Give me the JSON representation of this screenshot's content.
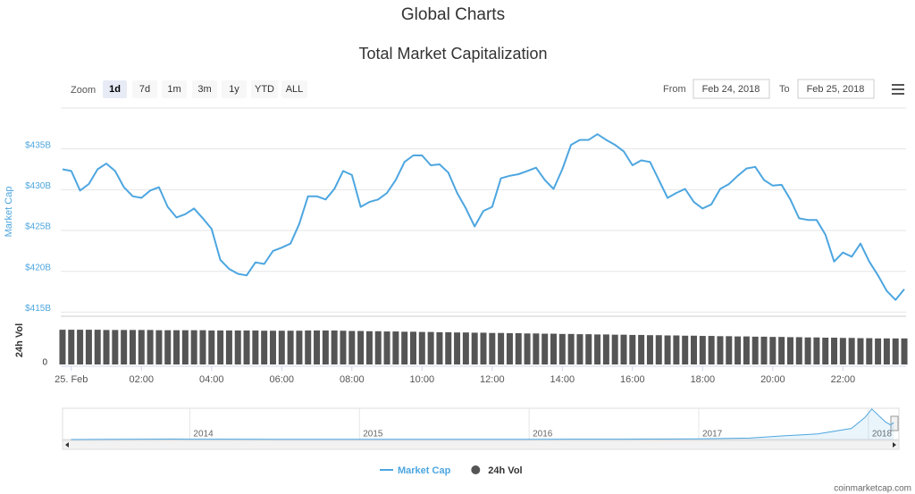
{
  "header": {
    "title": "Global Charts"
  },
  "controls": {
    "zoom_label": "Zoom",
    "zoom_buttons": [
      "1d",
      "7d",
      "1m",
      "3m",
      "1y",
      "YTD",
      "ALL"
    ],
    "selected": "1d",
    "from_label": "From",
    "from": "Feb 24, 2018",
    "to_label": "To",
    "to": "Feb 25, 2018"
  },
  "chart_data": [
    {
      "type": "line",
      "title": "Total Market Capitalization",
      "x": [
        -0.25,
        0,
        0.25,
        0.5,
        0.75,
        1,
        1.25,
        1.5,
        1.75,
        2,
        2.25,
        2.5,
        2.75,
        3,
        3.25,
        3.5,
        3.75,
        4,
        4.25,
        4.5,
        4.75,
        5,
        5.25,
        5.5,
        5.75,
        6,
        6.25,
        6.5,
        6.75,
        7,
        7.25,
        7.5,
        7.75,
        8,
        8.25,
        8.5,
        8.75,
        9,
        9.25,
        9.5,
        9.75,
        10,
        10.25,
        10.5,
        10.75,
        11,
        11.25,
        11.5,
        11.75,
        12,
        12.25,
        12.5,
        12.75,
        13,
        13.25,
        13.5,
        13.75,
        14,
        14.25,
        14.5,
        14.75,
        15,
        15.25,
        15.5,
        15.75,
        16,
        16.25,
        16.5,
        16.75,
        17,
        17.25,
        17.5,
        17.75,
        18,
        18.25,
        18.5,
        18.75,
        19,
        19.25,
        19.5,
        19.75,
        20,
        20.25,
        20.5,
        20.75,
        21,
        21.25,
        21.5,
        21.75,
        22,
        22.25,
        22.5,
        22.75,
        23,
        23.25,
        23.5,
        23.75
      ],
      "xlim": [
        -0.3,
        23.8
      ],
      "xticks": [
        {
          "value": 0,
          "label": "25. Feb"
        },
        {
          "value": 2,
          "label": "02:00"
        },
        {
          "value": 4,
          "label": "04:00"
        },
        {
          "value": 6,
          "label": "06:00"
        },
        {
          "value": 8,
          "label": "08:00"
        },
        {
          "value": 10,
          "label": "10:00"
        },
        {
          "value": 12,
          "label": "12:00"
        },
        {
          "value": 14,
          "label": "14:00"
        },
        {
          "value": 16,
          "label": "16:00"
        },
        {
          "value": 18,
          "label": "18:00"
        },
        {
          "value": 20,
          "label": "20:00"
        },
        {
          "value": 22,
          "label": "22:00"
        }
      ],
      "ylabel": "Market Cap",
      "ylim": [
        414.5,
        440
      ],
      "yticks": [
        {
          "value": 415,
          "label": "$415B"
        },
        {
          "value": 420,
          "label": "$420B"
        },
        {
          "value": 425,
          "label": "$425B"
        },
        {
          "value": 430,
          "label": "$430B"
        },
        {
          "value": 435,
          "label": "$435B"
        }
      ],
      "y2label": "24h Vol",
      "y2lim": [
        0,
        18
      ],
      "y2ticks": [
        0
      ],
      "grid": true,
      "series": [
        {
          "name": "Market Cap",
          "color": "#4da6e0",
          "values": [
            432.5,
            432.3,
            429.9,
            430.7,
            432.5,
            433.2,
            432.3,
            430.3,
            429.2,
            429.0,
            429.9,
            430.3,
            427.9,
            426.6,
            427.0,
            427.7,
            426.5,
            425.2,
            421.4,
            420.3,
            419.7,
            419.5,
            421.1,
            420.9,
            422.5,
            422.9,
            423.4,
            425.8,
            429.2,
            429.2,
            428.8,
            430.1,
            432.3,
            431.8,
            427.9,
            428.5,
            428.8,
            429.6,
            431.2,
            433.4,
            434.2,
            434.2,
            433.0,
            433.1,
            432.1,
            429.6,
            427.7,
            425.5,
            427.4,
            427.9,
            431.4,
            431.7,
            431.9,
            432.3,
            432.7,
            431.2,
            430.1,
            432.5,
            435.5,
            436.1,
            436.1,
            436.8,
            436.1,
            435.5,
            434.7,
            433.0,
            433.6,
            433.4,
            431.2,
            429.0,
            429.6,
            430.1,
            428.5,
            427.7,
            428.2,
            430.1,
            430.7,
            431.7,
            432.6,
            432.8,
            431.2,
            430.5,
            430.6,
            428.8,
            426.5,
            426.3,
            426.3,
            424.5,
            421.2,
            422.3,
            421.8,
            423.4,
            421.2,
            419.5,
            417.6,
            416.5,
            417.8
          ]
        },
        {
          "name": "24h Vol",
          "type": "bar",
          "axis": "y2",
          "color": "#555555",
          "values": [
            14.0,
            14.0,
            14.0,
            14.0,
            14.0,
            13.9,
            13.9,
            13.9,
            13.9,
            13.9,
            13.9,
            13.8,
            13.8,
            13.8,
            13.8,
            13.8,
            13.8,
            13.7,
            13.7,
            13.7,
            13.7,
            13.7,
            13.7,
            13.6,
            13.6,
            13.6,
            13.6,
            13.6,
            13.7,
            13.7,
            13.7,
            13.7,
            13.6,
            13.5,
            13.5,
            13.4,
            13.4,
            13.3,
            13.3,
            13.2,
            13.2,
            13.1,
            13.1,
            13.0,
            13.0,
            12.9,
            12.9,
            12.8,
            12.8,
            12.7,
            12.7,
            12.6,
            12.6,
            12.5,
            12.5,
            12.4,
            12.4,
            12.3,
            12.3,
            12.2,
            12.2,
            12.1,
            12.1,
            12.0,
            12.0,
            11.9,
            11.9,
            11.8,
            11.8,
            11.7,
            11.7,
            11.6,
            11.6,
            11.5,
            11.5,
            11.4,
            11.4,
            11.3,
            11.3,
            11.2,
            11.2,
            11.1,
            11.1,
            11.0,
            11.0,
            10.9,
            10.9,
            10.8,
            10.8,
            10.7,
            10.7,
            10.6,
            10.6,
            10.5,
            10.5,
            10.5,
            10.5
          ]
        }
      ]
    },
    {
      "type": "area",
      "color": "#4da6e0",
      "x": [
        2013.3,
        2013.9,
        2014.0,
        2014.5,
        2015.0,
        2015.5,
        2016.0,
        2016.5,
        2017.0,
        2017.3,
        2017.5,
        2017.7,
        2017.9,
        2017.98,
        2018.02,
        2018.1,
        2018.13,
        2018.15
      ],
      "values": [
        1,
        12,
        10,
        8,
        5,
        4,
        7,
        10,
        18,
        40,
        100,
        150,
        300,
        600,
        830,
        480,
        400,
        460
      ],
      "xlim": [
        2013.25,
        2018.18
      ],
      "ylim": [
        0,
        850
      ],
      "xticks": [
        {
          "value": 2014,
          "label": "2014"
        },
        {
          "value": 2015,
          "label": "2015"
        },
        {
          "value": 2016,
          "label": "2016"
        },
        {
          "value": 2017,
          "label": "2017"
        },
        {
          "value": 2018,
          "label": "2018"
        }
      ]
    }
  ],
  "footer": {
    "credit": "coinmarketcap.com"
  }
}
